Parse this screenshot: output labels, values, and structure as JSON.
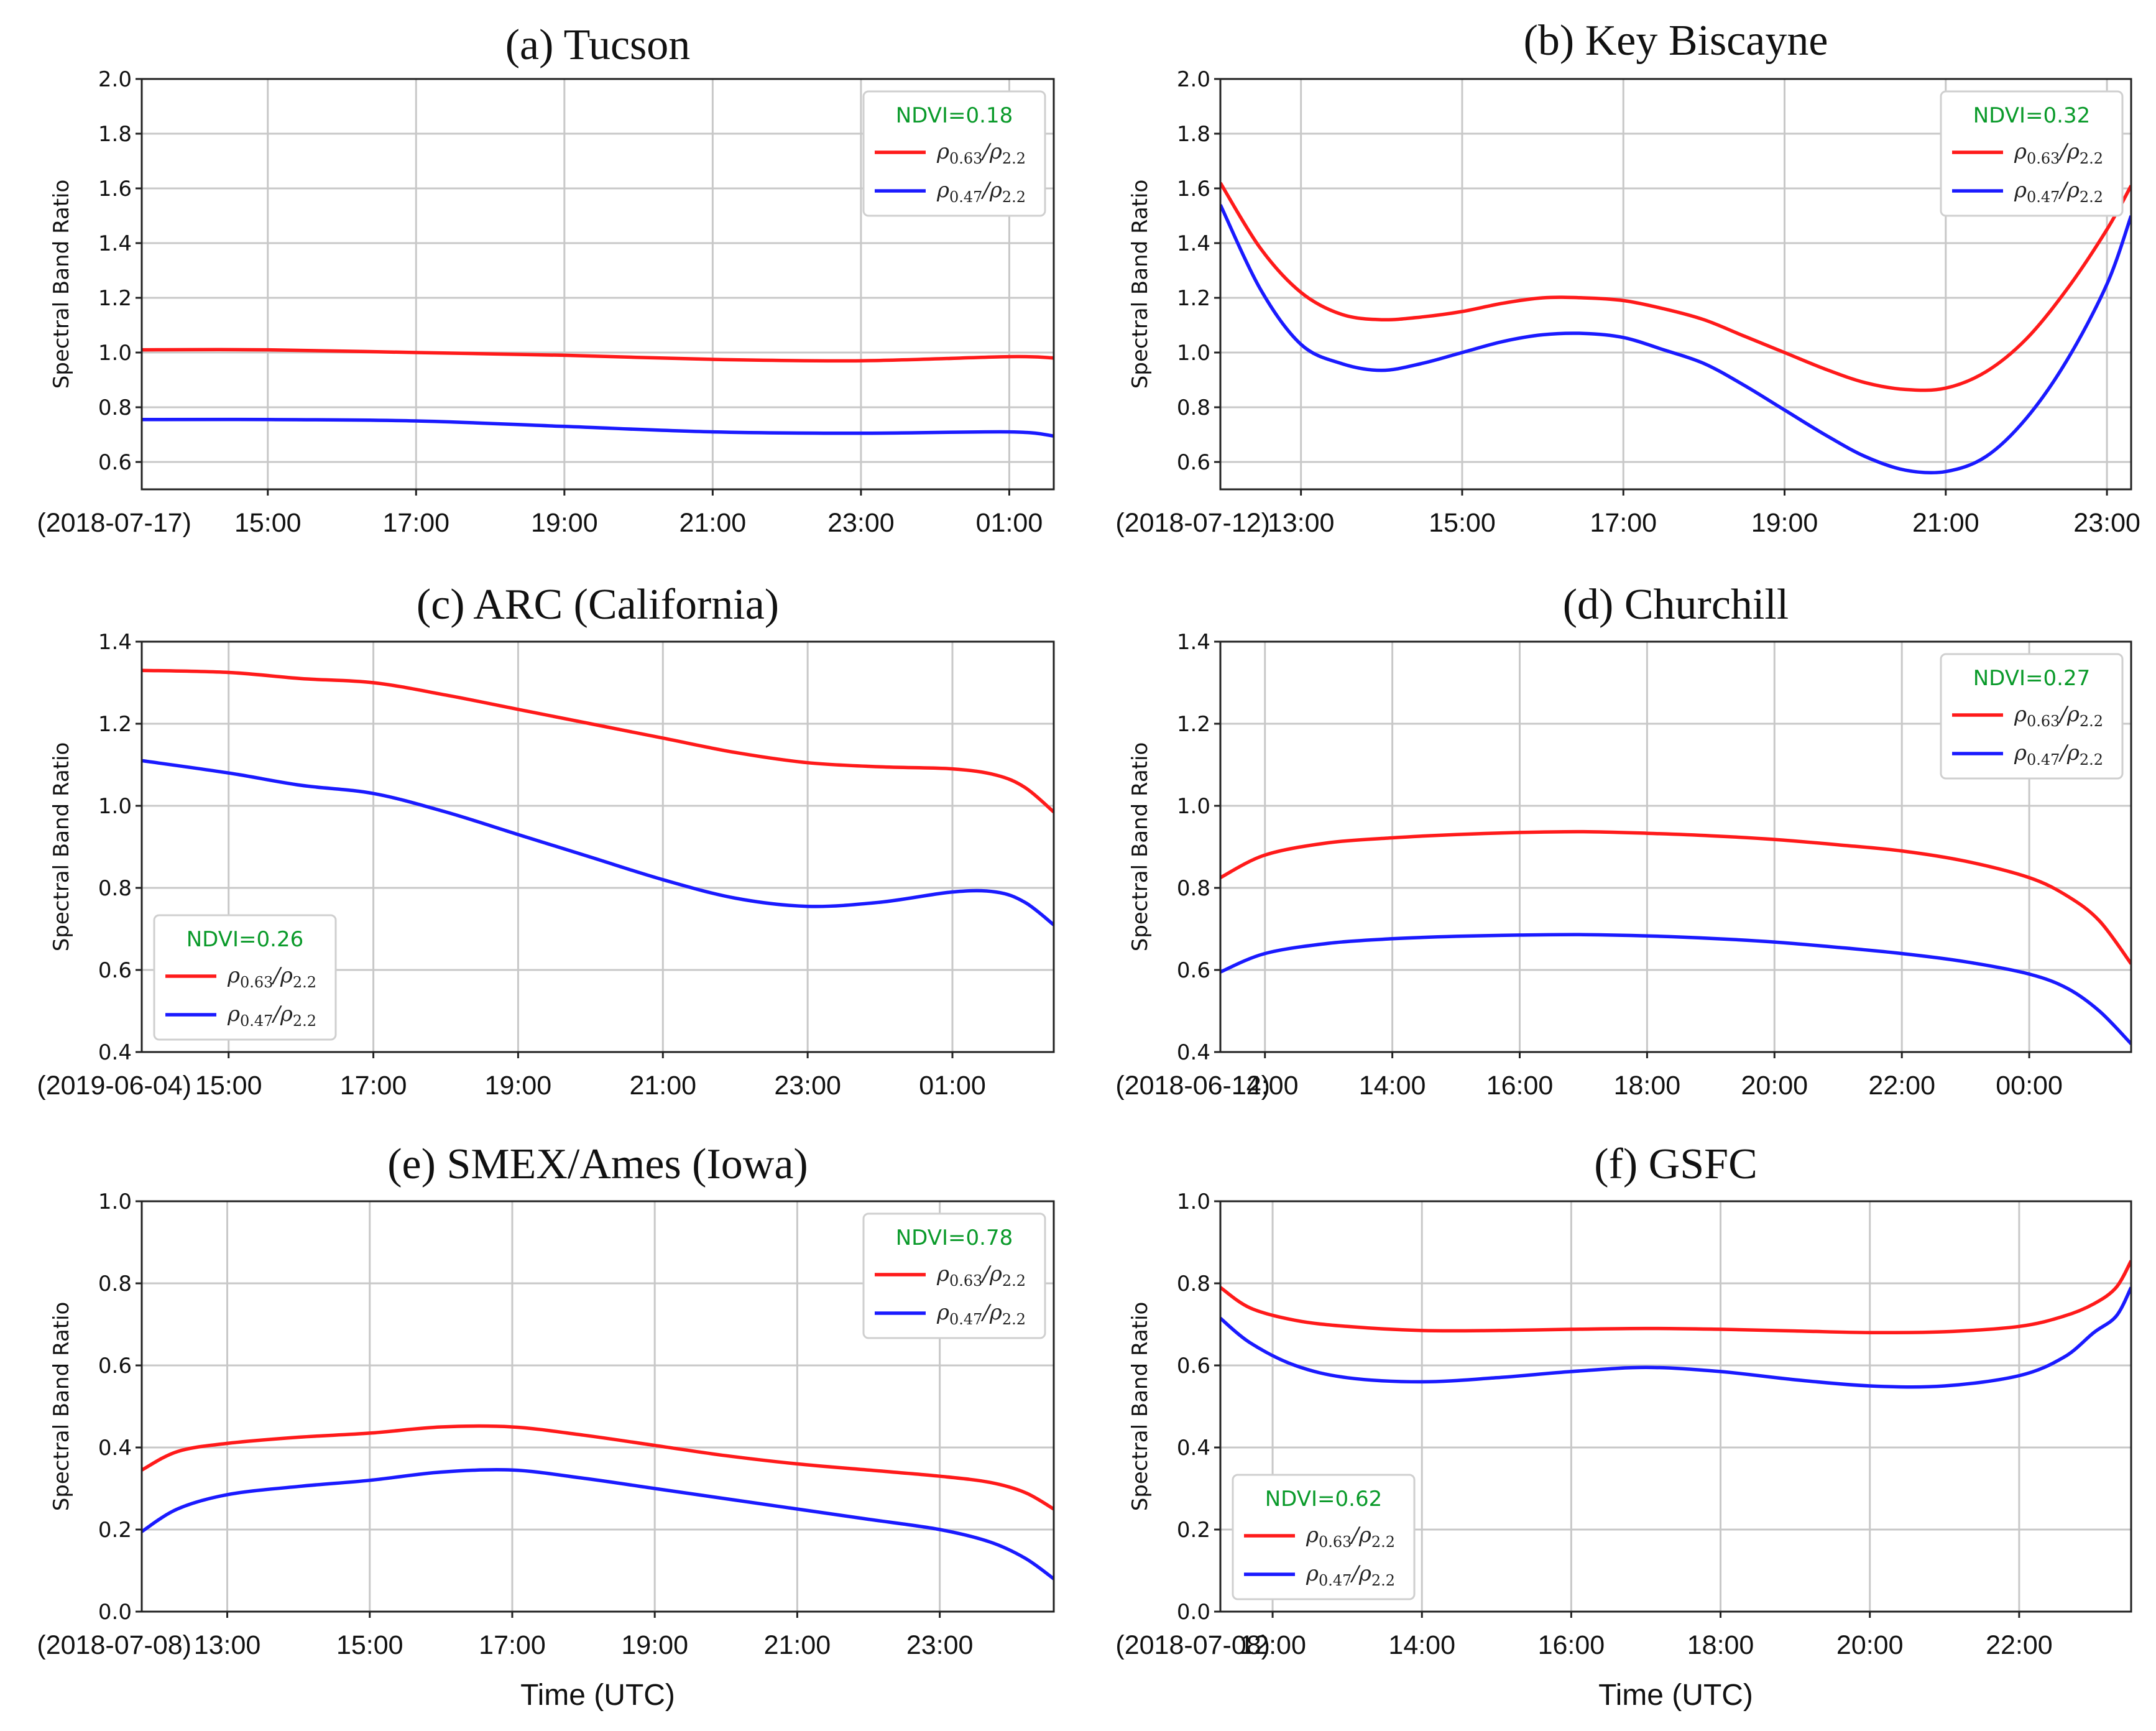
{
  "chart_data": [
    {
      "id": "a",
      "type": "line",
      "title": "(a) Tucson",
      "ylabel": "Spectral Band Ratio",
      "xlabel": "",
      "ylim": [
        0.5,
        2.0
      ],
      "yticks": [
        0.6,
        0.8,
        1.0,
        1.2,
        1.4,
        1.6,
        1.8,
        2.0
      ],
      "xlim": [
        13.3,
        25.6
      ],
      "xticks": [
        {
          "x": 15,
          "label": "15:00"
        },
        {
          "x": 17,
          "label": "17:00"
        },
        {
          "x": 19,
          "label": "19:00"
        },
        {
          "x": 21,
          "label": "21:00"
        },
        {
          "x": 23,
          "label": "23:00"
        },
        {
          "x": 25,
          "label": "01:00"
        }
      ],
      "date_label": "(2018-07-17)",
      "legend": {
        "position": "top-right",
        "ndvi": "NDVI=0.18"
      },
      "series": [
        {
          "name": "ρ0.63/ρ2.2",
          "base": "ρ",
          "sub1": "0.63",
          "sep": "/ρ",
          "sub2": "2.2",
          "color": "#ff1a1a",
          "x": [
            13.3,
            15,
            17,
            19,
            21,
            23,
            25,
            25.6
          ],
          "y": [
            1.01,
            1.01,
            1.0,
            0.99,
            0.975,
            0.97,
            0.985,
            0.98
          ]
        },
        {
          "name": "ρ0.47/ρ2.2",
          "base": "ρ",
          "sub1": "0.47",
          "sep": "/ρ",
          "sub2": "2.2",
          "color": "#1a1aff",
          "x": [
            13.3,
            15,
            17,
            19,
            21,
            23,
            25,
            25.6
          ],
          "y": [
            0.755,
            0.755,
            0.75,
            0.73,
            0.71,
            0.705,
            0.71,
            0.695
          ]
        }
      ]
    },
    {
      "id": "b",
      "type": "line",
      "title": "(b) Key Biscayne",
      "ylabel": "Spectral Band Ratio",
      "xlabel": "",
      "ylim": [
        0.5,
        2.0
      ],
      "yticks": [
        0.6,
        0.8,
        1.0,
        1.2,
        1.4,
        1.6,
        1.8,
        2.0
      ],
      "xlim": [
        12.0,
        23.3
      ],
      "xticks": [
        {
          "x": 13,
          "label": "13:00"
        },
        {
          "x": 15,
          "label": "15:00"
        },
        {
          "x": 17,
          "label": "17:00"
        },
        {
          "x": 19,
          "label": "19:00"
        },
        {
          "x": 21,
          "label": "21:00"
        },
        {
          "x": 23,
          "label": "23:00"
        }
      ],
      "date_label": "(2018-07-12)",
      "legend": {
        "position": "top-right",
        "ndvi": "NDVI=0.32"
      },
      "series": [
        {
          "name": "ρ0.63/ρ2.2",
          "base": "ρ",
          "sub1": "0.63",
          "sep": "/ρ",
          "sub2": "2.2",
          "color": "#ff1a1a",
          "x": [
            12.0,
            12.5,
            13.0,
            13.5,
            14.0,
            14.5,
            15.0,
            15.5,
            16.0,
            16.5,
            17.0,
            17.5,
            18.0,
            18.5,
            19.0,
            19.5,
            20.0,
            20.5,
            21.0,
            21.5,
            22.0,
            22.5,
            23.0,
            23.3
          ],
          "y": [
            1.62,
            1.38,
            1.22,
            1.14,
            1.12,
            1.13,
            1.15,
            1.18,
            1.2,
            1.2,
            1.19,
            1.16,
            1.12,
            1.06,
            1.0,
            0.94,
            0.89,
            0.865,
            0.87,
            0.93,
            1.05,
            1.23,
            1.45,
            1.61
          ]
        },
        {
          "name": "ρ0.47/ρ2.2",
          "base": "ρ",
          "sub1": "0.47",
          "sep": "/ρ",
          "sub2": "2.2",
          "color": "#1a1aff",
          "x": [
            12.0,
            12.5,
            13.0,
            13.5,
            14.0,
            14.5,
            15.0,
            15.5,
            16.0,
            16.5,
            17.0,
            17.5,
            18.0,
            18.5,
            19.0,
            19.5,
            20.0,
            20.5,
            21.0,
            21.5,
            22.0,
            22.5,
            23.0,
            23.3
          ],
          "y": [
            1.54,
            1.23,
            1.03,
            0.96,
            0.935,
            0.96,
            1.0,
            1.04,
            1.065,
            1.07,
            1.055,
            1.01,
            0.96,
            0.88,
            0.79,
            0.7,
            0.62,
            0.57,
            0.565,
            0.62,
            0.76,
            0.97,
            1.25,
            1.5
          ]
        }
      ]
    },
    {
      "id": "c",
      "type": "line",
      "title": "(c) ARC (California)",
      "ylabel": "Spectral Band Ratio",
      "xlabel": "",
      "ylim": [
        0.4,
        1.4
      ],
      "yticks": [
        0.4,
        0.6,
        0.8,
        1.0,
        1.2,
        1.4
      ],
      "xlim": [
        13.8,
        26.4
      ],
      "xticks": [
        {
          "x": 15,
          "label": "15:00"
        },
        {
          "x": 17,
          "label": "17:00"
        },
        {
          "x": 19,
          "label": "19:00"
        },
        {
          "x": 21,
          "label": "21:00"
        },
        {
          "x": 23,
          "label": "23:00"
        },
        {
          "x": 25,
          "label": "01:00"
        }
      ],
      "date_label": "(2019-06-04)",
      "legend": {
        "position": "bottom-left",
        "ndvi": "NDVI=0.26"
      },
      "series": [
        {
          "name": "ρ0.63/ρ2.2",
          "base": "ρ",
          "sub1": "0.63",
          "sep": "/ρ",
          "sub2": "2.2",
          "color": "#ff1a1a",
          "x": [
            13.8,
            15,
            16,
            17,
            18,
            19,
            20,
            21,
            22,
            23,
            24,
            25,
            25.6,
            26.0,
            26.4
          ],
          "y": [
            1.33,
            1.325,
            1.31,
            1.3,
            1.27,
            1.235,
            1.2,
            1.165,
            1.13,
            1.105,
            1.095,
            1.09,
            1.075,
            1.045,
            0.985
          ]
        },
        {
          "name": "ρ0.47/ρ2.2",
          "base": "ρ",
          "sub1": "0.47",
          "sep": "/ρ",
          "sub2": "2.2",
          "color": "#1a1aff",
          "x": [
            13.8,
            15,
            16,
            17,
            18,
            19,
            20,
            21,
            22,
            23,
            24,
            25,
            25.6,
            26.0,
            26.4
          ],
          "y": [
            1.11,
            1.08,
            1.05,
            1.03,
            0.985,
            0.93,
            0.875,
            0.82,
            0.775,
            0.755,
            0.765,
            0.79,
            0.79,
            0.765,
            0.71
          ]
        }
      ]
    },
    {
      "id": "d",
      "type": "line",
      "title": "(d) Churchill",
      "ylabel": "Spectral Band Ratio",
      "xlabel": "",
      "ylim": [
        0.4,
        1.4
      ],
      "yticks": [
        0.4,
        0.6,
        0.8,
        1.0,
        1.2,
        1.4
      ],
      "xlim": [
        11.3,
        25.6
      ],
      "xticks": [
        {
          "x": 12,
          "label": "12:00"
        },
        {
          "x": 14,
          "label": "14:00"
        },
        {
          "x": 16,
          "label": "16:00"
        },
        {
          "x": 18,
          "label": "18:00"
        },
        {
          "x": 20,
          "label": "20:00"
        },
        {
          "x": 22,
          "label": "22:00"
        },
        {
          "x": 24,
          "label": "00:00"
        }
      ],
      "date_label": "(2018-06-14)",
      "legend": {
        "position": "top-right",
        "ndvi": "NDVI=0.27"
      },
      "series": [
        {
          "name": "ρ0.63/ρ2.2",
          "base": "ρ",
          "sub1": "0.63",
          "sep": "/ρ",
          "sub2": "2.2",
          "color": "#ff1a1a",
          "x": [
            11.3,
            12,
            13,
            14,
            15,
            16,
            17,
            18,
            19,
            20,
            21,
            22,
            23,
            24,
            24.6,
            25.1,
            25.6
          ],
          "y": [
            0.825,
            0.88,
            0.91,
            0.922,
            0.93,
            0.935,
            0.937,
            0.933,
            0.927,
            0.918,
            0.905,
            0.89,
            0.865,
            0.825,
            0.78,
            0.72,
            0.615
          ]
        },
        {
          "name": "ρ0.47/ρ2.2",
          "base": "ρ",
          "sub1": "0.47",
          "sep": "/ρ",
          "sub2": "2.2",
          "color": "#1a1aff",
          "x": [
            11.3,
            12,
            13,
            14,
            15,
            16,
            17,
            18,
            19,
            20,
            21,
            22,
            23,
            24,
            24.6,
            25.1,
            25.6
          ],
          "y": [
            0.595,
            0.64,
            0.665,
            0.676,
            0.682,
            0.685,
            0.686,
            0.683,
            0.677,
            0.668,
            0.655,
            0.64,
            0.62,
            0.59,
            0.555,
            0.5,
            0.42
          ]
        }
      ]
    },
    {
      "id": "e",
      "type": "line",
      "title": "(e) SMEX/Ames (Iowa)",
      "ylabel": "Spectral Band Ratio",
      "xlabel": "Time (UTC)",
      "ylim": [
        0.0,
        1.0
      ],
      "yticks": [
        0.0,
        0.2,
        0.4,
        0.6,
        0.8,
        1.0
      ],
      "xlim": [
        11.8,
        24.6
      ],
      "xticks": [
        {
          "x": 13,
          "label": "13:00"
        },
        {
          "x": 15,
          "label": "15:00"
        },
        {
          "x": 17,
          "label": "17:00"
        },
        {
          "x": 19,
          "label": "19:00"
        },
        {
          "x": 21,
          "label": "21:00"
        },
        {
          "x": 23,
          "label": "23:00"
        }
      ],
      "date_label": "(2018-07-08)",
      "legend": {
        "position": "top-right",
        "ndvi": "NDVI=0.78"
      },
      "series": [
        {
          "name": "ρ0.63/ρ2.2",
          "base": "ρ",
          "sub1": "0.63",
          "sep": "/ρ",
          "sub2": "2.2",
          "color": "#ff1a1a",
          "x": [
            11.8,
            12.3,
            13,
            14,
            15,
            16,
            17,
            18,
            19,
            20,
            21,
            22,
            23,
            23.7,
            24.2,
            24.6
          ],
          "y": [
            0.345,
            0.39,
            0.41,
            0.425,
            0.435,
            0.45,
            0.45,
            0.43,
            0.405,
            0.38,
            0.36,
            0.345,
            0.33,
            0.315,
            0.29,
            0.25
          ]
        },
        {
          "name": "ρ0.47/ρ2.2",
          "base": "ρ",
          "sub1": "0.47",
          "sep": "/ρ",
          "sub2": "2.2",
          "color": "#1a1aff",
          "x": [
            11.8,
            12.3,
            13,
            14,
            15,
            16,
            17,
            18,
            19,
            20,
            21,
            22,
            23,
            23.7,
            24.2,
            24.6
          ],
          "y": [
            0.195,
            0.25,
            0.285,
            0.305,
            0.32,
            0.34,
            0.345,
            0.325,
            0.3,
            0.275,
            0.25,
            0.225,
            0.2,
            0.17,
            0.13,
            0.08
          ]
        }
      ]
    },
    {
      "id": "f",
      "type": "line",
      "title": "(f) GSFC",
      "ylabel": "Spectral Band Ratio",
      "xlabel": "Time (UTC)",
      "ylim": [
        0.0,
        1.0
      ],
      "yticks": [
        0.0,
        0.2,
        0.4,
        0.6,
        0.8,
        1.0
      ],
      "xlim": [
        11.3,
        23.5
      ],
      "xticks": [
        {
          "x": 12,
          "label": "12:00"
        },
        {
          "x": 14,
          "label": "14:00"
        },
        {
          "x": 16,
          "label": "16:00"
        },
        {
          "x": 18,
          "label": "18:00"
        },
        {
          "x": 20,
          "label": "20:00"
        },
        {
          "x": 22,
          "label": "22:00"
        }
      ],
      "date_label": "(2018-07-08)",
      "legend": {
        "position": "bottom-left",
        "ndvi": "NDVI=0.62"
      },
      "series": [
        {
          "name": "ρ0.63/ρ2.2",
          "base": "ρ",
          "sub1": "0.63",
          "sep": "/ρ",
          "sub2": "2.2",
          "color": "#ff1a1a",
          "x": [
            11.3,
            11.7,
            12.3,
            13,
            14,
            15,
            16,
            17,
            18,
            19,
            20,
            21,
            22,
            22.6,
            23.0,
            23.3,
            23.5
          ],
          "y": [
            0.79,
            0.74,
            0.71,
            0.695,
            0.685,
            0.685,
            0.688,
            0.69,
            0.688,
            0.684,
            0.68,
            0.682,
            0.695,
            0.72,
            0.75,
            0.79,
            0.855
          ]
        },
        {
          "name": "ρ0.47/ρ2.2",
          "base": "ρ",
          "sub1": "0.47",
          "sep": "/ρ",
          "sub2": "2.2",
          "color": "#1a1aff",
          "x": [
            11.3,
            11.7,
            12.3,
            13,
            14,
            15,
            16,
            17,
            18,
            19,
            20,
            21,
            22,
            22.6,
            23.0,
            23.3,
            23.5
          ],
          "y": [
            0.715,
            0.655,
            0.6,
            0.57,
            0.56,
            0.57,
            0.585,
            0.595,
            0.585,
            0.565,
            0.55,
            0.55,
            0.575,
            0.62,
            0.68,
            0.72,
            0.79
          ]
        }
      ]
    }
  ]
}
